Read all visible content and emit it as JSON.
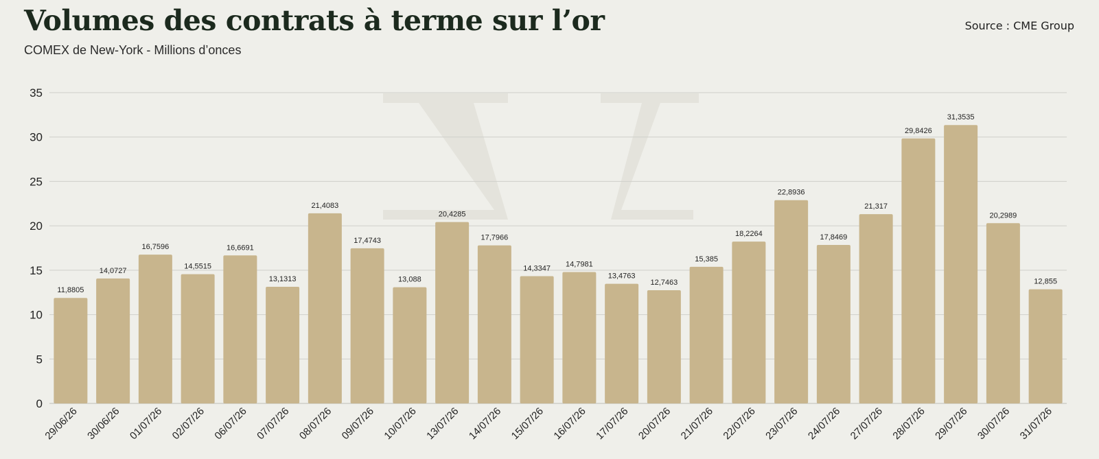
{
  "header": {
    "title": "Volumes des contrats à terme sur l’or",
    "subtitle": "COMEX de New-York - Millions d’onces",
    "source": "Source : CME Group"
  },
  "colors": {
    "bar": "#c8b58d",
    "grid": "#cfcfca",
    "background": "#efefea",
    "watermark": "#e4e3dc"
  },
  "chart_data": {
    "type": "bar",
    "title": "Volumes des contrats à terme sur l’or",
    "subtitle": "COMEX de New-York - Millions d’onces",
    "xlabel": "",
    "ylabel": "",
    "ylim": [
      0,
      35
    ],
    "yticks": [
      0,
      5,
      10,
      15,
      20,
      25,
      30,
      35
    ],
    "grid": true,
    "categories": [
      "29/06/26",
      "30/06/26",
      "01/07/26",
      "02/07/26",
      "06/07/26",
      "07/07/26",
      "08/07/26",
      "09/07/26",
      "10/07/26",
      "13/07/26",
      "14/07/26",
      "15/07/26",
      "16/07/26",
      "17/07/26",
      "20/07/26",
      "21/07/26",
      "22/07/26",
      "23/07/26",
      "24/07/26",
      "27/07/26",
      "28/07/26",
      "29/07/26",
      "30/07/26",
      "31/07/26"
    ],
    "values": [
      11.8805,
      14.0727,
      16.7596,
      14.5515,
      16.6691,
      13.1313,
      21.4083,
      17.4743,
      13.088,
      20.4285,
      17.7966,
      14.3347,
      14.7981,
      13.4763,
      12.7463,
      15.385,
      18.2264,
      22.8936,
      17.8469,
      21.317,
      29.8426,
      31.3535,
      20.2989,
      12.855
    ],
    "labels": [
      "11,8805",
      "14,0727",
      "16,7596",
      "14,5515",
      "16,6691",
      "13,1313",
      "21,4083",
      "17,4743",
      "13,088",
      "20,4285",
      "17,7966",
      "14,3347",
      "14,7981",
      "13,4763",
      "12,7463",
      "15,385",
      "18,2264",
      "22,8936",
      "17,8469",
      "21,317",
      "29,8426",
      "31,3535",
      "20,2989",
      "12,855"
    ]
  }
}
